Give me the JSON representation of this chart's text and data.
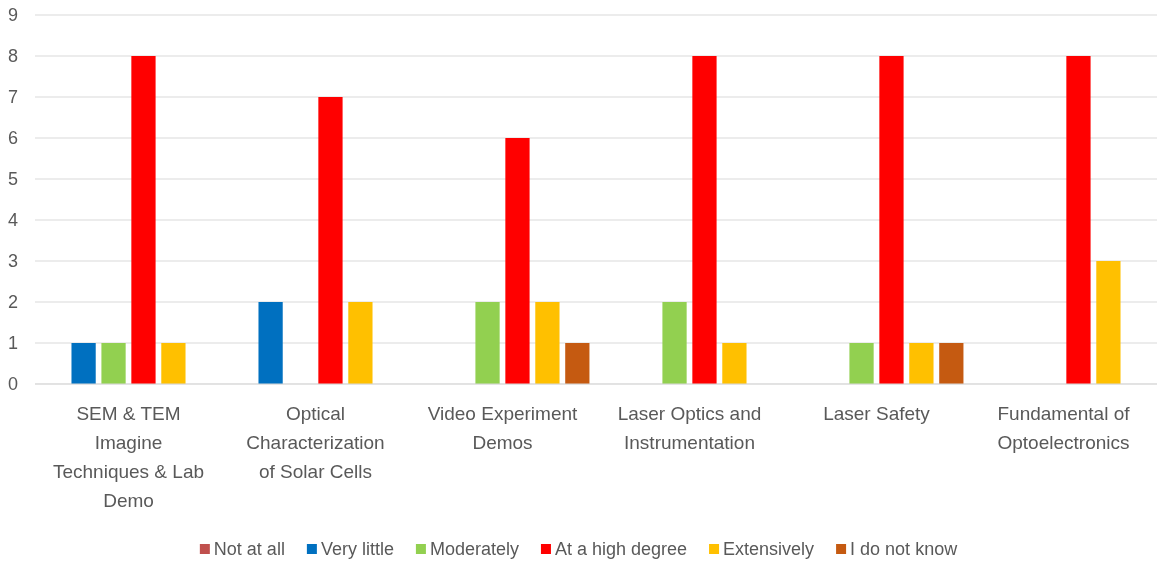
{
  "chart_data": {
    "type": "bar",
    "categories": [
      "SEM & TEM Imagine Techniques & Lab Demo",
      "Optical Characterization of Solar Cells",
      "Video Experiment Demos",
      "Laser Optics and Instrumentation",
      "Laser Safety",
      "Fundamental of Optoelectronics"
    ],
    "series": [
      {
        "name": "Not at all",
        "color": "#c0504d",
        "values": [
          0,
          0,
          0,
          0,
          0,
          0
        ]
      },
      {
        "name": "Very little",
        "color": "#0070c0",
        "values": [
          1,
          2,
          0,
          0,
          0,
          0
        ]
      },
      {
        "name": "Moderately",
        "color": "#92d050",
        "values": [
          1,
          0,
          2,
          2,
          1,
          0
        ]
      },
      {
        "name": "At a high degree",
        "color": "#ff0000",
        "values": [
          8,
          7,
          6,
          8,
          8,
          8
        ]
      },
      {
        "name": "Extensively",
        "color": "#ffc000",
        "values": [
          1,
          2,
          2,
          1,
          1,
          3
        ]
      },
      {
        "name": "I do not know",
        "color": "#c55a11",
        "values": [
          0,
          0,
          1,
          0,
          1,
          0
        ]
      }
    ],
    "ylim": [
      0,
      9
    ],
    "yticks": [
      0,
      1,
      2,
      3,
      4,
      5,
      6,
      7,
      8,
      9
    ],
    "grid": "y",
    "legend": "bottom"
  }
}
